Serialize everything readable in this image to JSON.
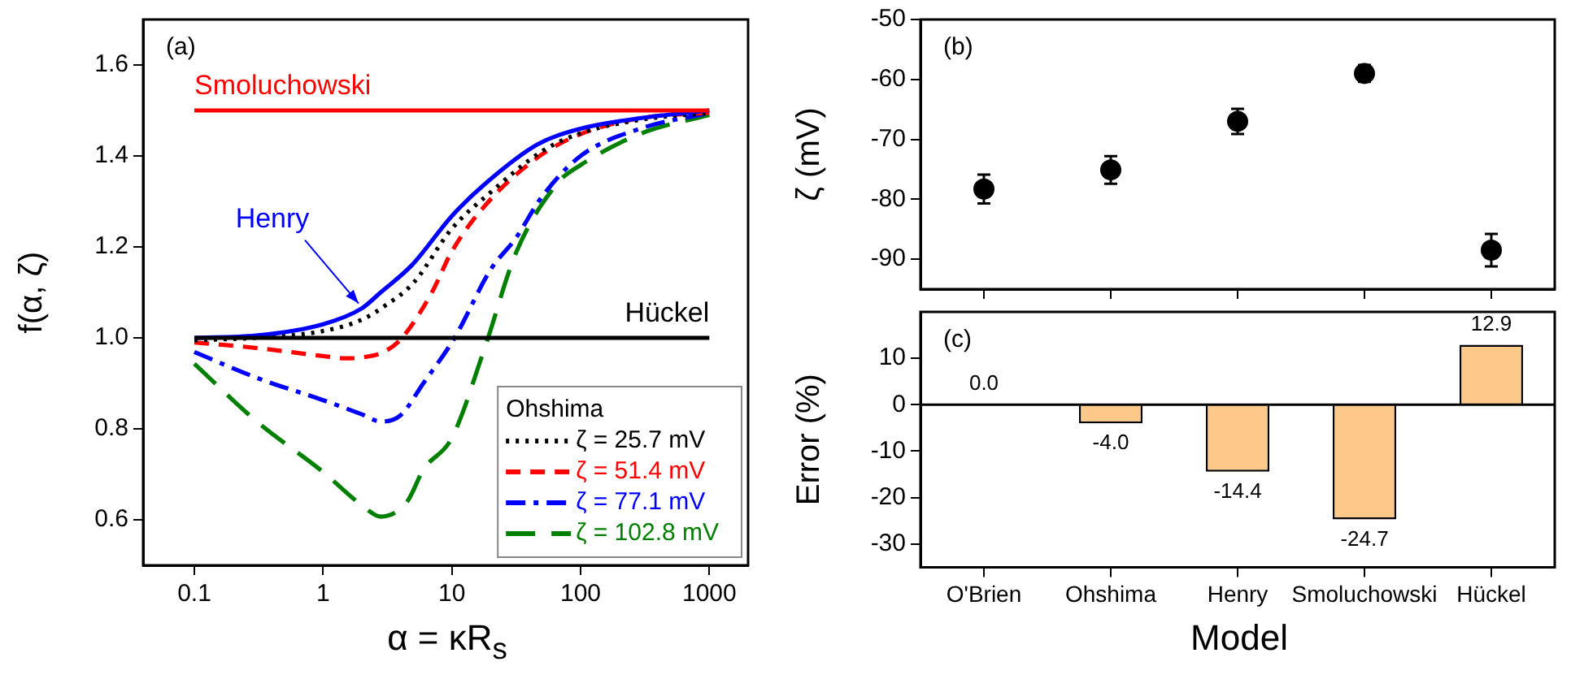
{
  "chart_data": [
    {
      "type": "line",
      "xlabel": "α = κR$_{s}$",
      "ylabel": "f(α, ζ)",
      "log": "x",
      "xlim": [
        0.04,
        2000
      ],
      "xticks": [
        0.1,
        1,
        10,
        100,
        1000
      ],
      "ylim": [
        0.5,
        1.7
      ],
      "yticks": [
        0.6,
        0.8,
        {
          "value": 1,
          "label": "1.0"
        },
        1.2,
        1.4,
        1.6
      ],
      "grid": false,
      "legend": "bottom right",
      "legend_title": "Ohshima",
      "marker": "none",
      "series": [
        {
          "color": "#ff0000",
          "line_style": "solid",
          "x": [
            0.1,
            1000
          ],
          "values": [
            1.5,
            1.5
          ]
        },
        {
          "color": "#000000",
          "line_style": "solid",
          "x": [
            0.1,
            1000
          ],
          "values": [
            1.0,
            1.0
          ]
        },
        {
          "color": "#0000ff",
          "line_style": "solid",
          "x": [
            0.1,
            0.3,
            1,
            2,
            2.8,
            4.9,
            10,
            18,
            46,
            100,
            290,
            1000
          ],
          "values": [
            1.0,
            1.005,
            1.03,
            1.065,
            1.1,
            1.16,
            1.268,
            1.338,
            1.425,
            1.46,
            1.483,
            1.5
          ]
        },
        {
          "name": "ζ = 25.7 mV",
          "color": "#000000",
          "line_style": "dotted",
          "x": [
            0.1,
            0.3,
            1,
            2,
            3,
            5,
            10,
            20,
            50,
            100,
            300,
            1000
          ],
          "values": [
            0.995,
            1.0,
            1.015,
            1.04,
            1.07,
            1.12,
            1.24,
            1.32,
            1.41,
            1.45,
            1.48,
            1.495
          ]
        },
        {
          "name": "ζ = 51.4 mV",
          "color": "#ff0000",
          "line_style": "dashed",
          "x": [
            0.1,
            0.3,
            1,
            1.5,
            2,
            3,
            4.1,
            7,
            10,
            18,
            46,
            100,
            290,
            1000
          ],
          "values": [
            0.99,
            0.978,
            0.96,
            0.955,
            0.957,
            0.97,
            1.0,
            1.1,
            1.19,
            1.29,
            1.396,
            1.448,
            1.483,
            1.495
          ]
        },
        {
          "name": "ζ = 77.1 mV",
          "color": "#0000ff",
          "line_style": "dashdot",
          "x": [
            0.1,
            0.3,
            1,
            2,
            2.8,
            4,
            6,
            10.5,
            20,
            31.5,
            50,
            100,
            290,
            1000
          ],
          "values": [
            0.969,
            0.913,
            0.863,
            0.832,
            0.816,
            0.83,
            0.9,
            1.0,
            1.15,
            1.22,
            1.31,
            1.4,
            1.46,
            1.495
          ]
        },
        {
          "name": "ζ = 102.8 mV",
          "color": "#008000",
          "line_style": "longdash",
          "x": [
            0.1,
            0.3,
            1,
            2,
            2.8,
            4.5,
            6,
            10,
            18,
            31.5,
            66,
            100,
            300,
            1000
          ],
          "values": [
            0.943,
            0.818,
            0.705,
            0.632,
            0.607,
            0.64,
            0.71,
            0.78,
            0.978,
            1.187,
            1.34,
            1.38,
            1.45,
            1.49
          ]
        }
      ],
      "annotations": [
        "(a)",
        {
          "text": "Smoluchowski",
          "x": 0.1,
          "y": 1.5
        },
        {
          "text": "Henry",
          "x": 2,
          "y": 1.065
        },
        {
          "text": "Hückel",
          "x": 1000,
          "y": 1.0
        }
      ]
    },
    {
      "type": "scatter",
      "ylabel": "ζ (mV)",
      "categories": [
        null,
        null,
        null,
        null,
        null
      ],
      "ylim": [
        -95,
        -50
      ],
      "yticks": [
        -90,
        -80,
        -70,
        -60,
        -50
      ],
      "tick_labels": "y",
      "grid": false,
      "marker": "circle",
      "series": [
        {
          "color": "#000000",
          "values": [
            -78.3,
            -75.1,
            -67.0,
            -59.0,
            -88.5
          ],
          "errors": [
            2.4,
            2.3,
            2.1,
            1.4,
            2.7
          ]
        }
      ],
      "annotations": [
        "(b)"
      ]
    },
    {
      "type": "bar",
      "xlabel": "Model",
      "ylabel": "Error (%)",
      "categories": [
        "O'Brien",
        "Ohshima",
        "Henry",
        "Smoluchowski",
        "Hückel"
      ],
      "ylim": [
        -35,
        20
      ],
      "yticks": [
        -30,
        -20,
        -10,
        0,
        10
      ],
      "grid": false,
      "color": "#fdc98a",
      "values": [
        0.0,
        -4.0,
        -14.4,
        -24.7,
        12.9
      ],
      "value_labels": [
        "0.0",
        "-4.0",
        "-14.4",
        "-24.7",
        "12.9"
      ],
      "ref_lines": [
        {
          "axis": "y",
          "value": 0,
          "color": "#000000"
        }
      ],
      "annotations": [
        "(c)"
      ]
    }
  ]
}
